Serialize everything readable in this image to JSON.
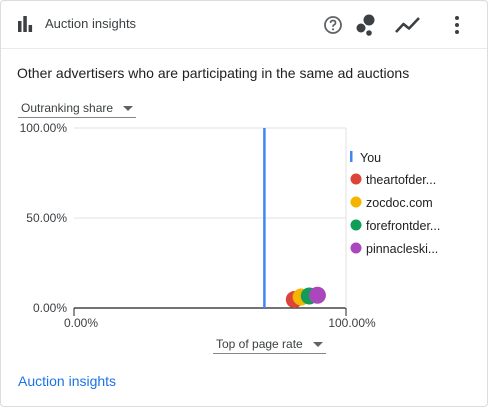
{
  "header": {
    "title": "Auction insights"
  },
  "icons": {
    "header_chart": "bar-chart-icon",
    "help": "help-icon",
    "scatter": "scatter-chart-icon",
    "line": "line-chart-icon",
    "more": "more-vert-icon"
  },
  "subtitle": "Other advertisers who are participating in the same ad auctions",
  "y_metric": {
    "selected": "Outranking share"
  },
  "x_metric": {
    "selected": "Top of page rate"
  },
  "footer": {
    "link_label": "Auction insights"
  },
  "colors": {
    "accent": "#1a73e8"
  },
  "chart_data": {
    "type": "scatter",
    "xlim": [
      0,
      100
    ],
    "ylim": [
      0,
      100
    ],
    "x_ticks": [
      "0.00%",
      "100.00%"
    ],
    "y_ticks": [
      "100.00%",
      "50.00%",
      "0.00%"
    ],
    "grid": true,
    "legend_position": "right",
    "you_line": {
      "name": "You",
      "x": 70,
      "color": "#4285f4"
    },
    "series": [
      {
        "name": "theartofder...",
        "color": "#db4437",
        "x": 81,
        "y": 0.8
      },
      {
        "name": "zocdoc.com",
        "color": "#f4b400",
        "x": 83.5,
        "y": 2.2
      },
      {
        "name": "forefrontder...",
        "color": "#0f9d58",
        "x": 86.5,
        "y": 2.8
      },
      {
        "name": "pinnacleski...",
        "color": "#ab47bc",
        "x": 89.5,
        "y": 3.2
      }
    ]
  }
}
